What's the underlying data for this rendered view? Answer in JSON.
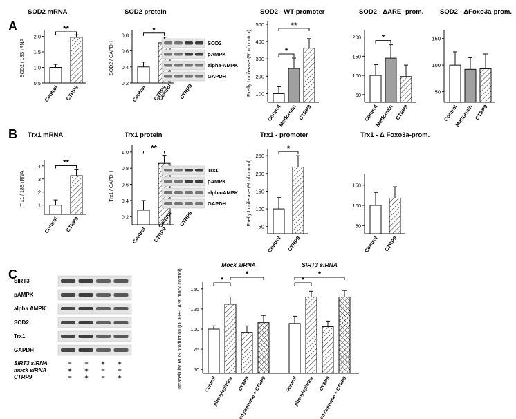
{
  "panels": {
    "A": "A",
    "B": "B",
    "C": "C"
  },
  "colors": {
    "bar_white": "#ffffff",
    "bar_grey": "#a0a0a0",
    "stroke": "#111111",
    "blot_bg": "#e4e4e4",
    "band": "#2a2a2a"
  },
  "charts": [
    {
      "id": "sod2_mrna",
      "title": "SOD2 mRNA",
      "ylabel": "SOD2 / 18S rRNA",
      "ticks": [
        "0.5",
        "1.0",
        "1.5",
        "2.0"
      ],
      "tickvals": [
        0.5,
        1.0,
        1.5,
        2.0
      ],
      "ylim": [
        0.5,
        2.1
      ],
      "categories": [
        "Control",
        "CTRP9"
      ],
      "values": [
        1.0,
        1.97
      ],
      "errors": [
        0.1,
        0.08
      ],
      "fills": [
        "white",
        "hatch"
      ],
      "sig": [
        {
          "from": 0,
          "to": 1,
          "label": "**"
        }
      ]
    },
    {
      "id": "sod2_protein",
      "title": "SOD2 protein",
      "ylabel": "SOD2 / GAPDH",
      "ticks": [
        "0.2",
        "0.4",
        "0.6",
        "0.8"
      ],
      "tickvals": [
        0.2,
        0.4,
        0.6,
        0.8
      ],
      "ylim": [
        0.2,
        0.82
      ],
      "categories": [
        "Control",
        "CTRP9"
      ],
      "values": [
        0.4,
        0.7
      ],
      "errors": [
        0.06,
        0.07
      ],
      "fills": [
        "white",
        "hatch"
      ],
      "sig": [
        {
          "from": 0,
          "to": 1,
          "label": "*"
        }
      ]
    },
    {
      "id": "sod2_wt",
      "title": "SOD2 - WT-promoter",
      "ylabel": "Firefly Luciferase (% of control)",
      "ticks": [
        "100",
        "200",
        "300",
        "400",
        "500"
      ],
      "tickvals": [
        100,
        200,
        300,
        400,
        500
      ],
      "ylim": [
        50,
        500
      ],
      "categories": [
        "Control",
        "Metformin",
        "CTRP9"
      ],
      "values": [
        100,
        245,
        362
      ],
      "errors": [
        40,
        60,
        55
      ],
      "fills": [
        "white",
        "grey",
        "hatch"
      ],
      "sig": [
        {
          "from": 0,
          "to": 1,
          "label": "*"
        },
        {
          "from": 0,
          "to": 2,
          "label": "**"
        }
      ]
    },
    {
      "id": "sod2_are",
      "title": "SOD2 - ΔARE -prom.",
      "ylabel": "",
      "ticks": [
        "50",
        "100",
        "150",
        "200"
      ],
      "tickvals": [
        50,
        100,
        150,
        200
      ],
      "ylim": [
        30,
        210
      ],
      "categories": [
        "Control",
        "Metformin",
        "CTRP9"
      ],
      "values": [
        100,
        145,
        97
      ],
      "errors": [
        28,
        35,
        30
      ],
      "fills": [
        "white",
        "grey",
        "hatch"
      ],
      "sig": [
        {
          "from": 0,
          "to": 1,
          "label": "*"
        }
      ]
    },
    {
      "id": "sod2_foxo",
      "title": "SOD2 - ΔFoxo3a-prom.",
      "ylabel": "",
      "ticks": [
        "50",
        "100",
        "150"
      ],
      "tickvals": [
        50,
        100,
        150
      ],
      "ylim": [
        30,
        160
      ],
      "categories": [
        "Control",
        "Metformin",
        "CTRP9"
      ],
      "values": [
        100,
        92,
        93
      ],
      "errors": [
        25,
        22,
        28
      ],
      "fills": [
        "white",
        "grey",
        "hatch"
      ],
      "sig": []
    },
    {
      "id": "trx1_mrna",
      "title": "Trx1 mRNA",
      "ylabel": "Trx1 / 18S rRNA",
      "ticks": [
        "1",
        "2",
        "3",
        "4"
      ],
      "tickvals": [
        1,
        2,
        3,
        4
      ],
      "ylim": [
        0.3,
        4.2
      ],
      "categories": [
        "Control",
        "CTRP9"
      ],
      "values": [
        1.0,
        3.25
      ],
      "errors": [
        0.4,
        0.45
      ],
      "fills": [
        "white",
        "hatch"
      ],
      "sig": [
        {
          "from": 0,
          "to": 1,
          "label": "**"
        }
      ]
    },
    {
      "id": "trx1_protein",
      "title": "Trx1 protein",
      "ylabel": "Trx1 / GAPDH",
      "ticks": [
        "0.2",
        "0.4",
        "0.6",
        "0.8",
        "1.0"
      ],
      "tickvals": [
        0.2,
        0.4,
        0.6,
        0.8,
        1.0
      ],
      "ylim": [
        0.1,
        1.05
      ],
      "categories": [
        "Control",
        "CTRP9"
      ],
      "values": [
        0.28,
        0.86
      ],
      "errors": [
        0.12,
        0.1
      ],
      "fills": [
        "white",
        "hatch"
      ],
      "sig": [
        {
          "from": 0,
          "to": 1,
          "label": "**"
        }
      ]
    },
    {
      "id": "trx1_prom",
      "title": "Trx1 - promoter",
      "ylabel": "Firefly Luciferase (% of control)",
      "ticks": [
        "50",
        "100",
        "150",
        "200",
        "250"
      ],
      "tickvals": [
        50,
        100,
        150,
        200,
        250
      ],
      "ylim": [
        30,
        260
      ],
      "categories": [
        "Control",
        "CTRP9"
      ],
      "values": [
        100,
        218
      ],
      "errors": [
        32,
        32
      ],
      "fills": [
        "white",
        "hatch"
      ],
      "sig": [
        {
          "from": 0,
          "to": 1,
          "label": "*"
        }
      ]
    },
    {
      "id": "trx1_foxo",
      "title": "Trx1 - Δ Foxo3a-prom.",
      "ylabel": "",
      "ticks": [
        "50",
        "100",
        "150"
      ],
      "tickvals": [
        50,
        100,
        150
      ],
      "ylim": [
        30,
        170
      ],
      "categories": [
        "Control",
        "CTRP9"
      ],
      "values": [
        100,
        118
      ],
      "errors": [
        32,
        28
      ],
      "fills": [
        "white",
        "hatch"
      ],
      "sig": []
    }
  ],
  "blots": [
    {
      "id": "blot_sod2",
      "labels": [
        "SOD2",
        "pAMPK",
        "alpha-AMPK",
        "GAPDH"
      ],
      "columns": [
        "Control",
        "CTRP9"
      ]
    },
    {
      "id": "blot_trx1",
      "labels": [
        "Trx1",
        "pAMPK",
        "alpha-AMPK",
        "GAPDH"
      ],
      "columns": [
        "Control",
        "CTRP9"
      ]
    }
  ],
  "panel_c": {
    "blot_labels": [
      "SIRT3",
      "pAMPK",
      "alpha AMPK",
      "SOD2",
      "Trx1",
      "GAPDH"
    ],
    "conditions": [
      {
        "label": "SIRT3 siRNA",
        "marks": [
          "−",
          "−",
          "+",
          "+"
        ]
      },
      {
        "label": "mock siRNA",
        "marks": [
          "+",
          "+",
          "−",
          "−"
        ]
      },
      {
        "label": "CTRP9",
        "marks": [
          "−",
          "+",
          "−",
          "+"
        ]
      }
    ]
  },
  "chart_data": {
    "type": "bar",
    "ylabel": "Intracellular ROS production (DCFH-DA % mock control)",
    "ticks": [
      "50",
      "75",
      "100",
      "125",
      "150"
    ],
    "tickvals": [
      50,
      75,
      100,
      125,
      150
    ],
    "ylim": [
      45,
      155
    ],
    "groups": [
      {
        "title": "Mock siRNA",
        "categories": [
          "Control",
          "phenylephrine",
          "CTRP9",
          "phenylephrine + CTRP9"
        ],
        "values": [
          100,
          131,
          96,
          108
        ],
        "errors": [
          4,
          9,
          8,
          9
        ],
        "fills": [
          "white",
          "hatch",
          "hatch",
          "cross"
        ],
        "sig": [
          {
            "from": 0,
            "to": 1,
            "label": "*"
          },
          {
            "from": 1,
            "to": 3,
            "label": "*"
          }
        ]
      },
      {
        "title": "SIRT3 siRNA",
        "categories": [
          "Control",
          "phenylephrine",
          "CTRP9",
          "phenylephrine + CTRP9"
        ],
        "values": [
          107,
          140,
          103,
          140
        ],
        "errors": [
          9,
          7,
          7,
          8
        ],
        "fills": [
          "white",
          "hatch",
          "hatch",
          "cross"
        ],
        "sig": [
          {
            "from": 0,
            "to": 1,
            "label": "*"
          },
          {
            "from": 0,
            "to": 3,
            "label": "*"
          }
        ]
      }
    ]
  }
}
